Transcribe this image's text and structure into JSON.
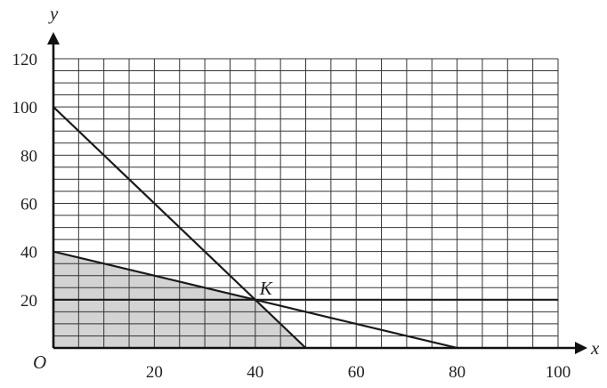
{
  "chart_data": {
    "type": "line",
    "title": "",
    "xlabel": "x",
    "ylabel": "y",
    "origin_label": "O",
    "xlim": [
      0,
      100
    ],
    "ylim": [
      0,
      120
    ],
    "x_ticks": [
      20,
      40,
      60,
      80,
      100
    ],
    "y_ticks": [
      20,
      40,
      60,
      80,
      100,
      120
    ],
    "grid": true,
    "grid_minor_step": 5,
    "lines": [
      {
        "from": [
          0,
          100
        ],
        "to": [
          50,
          0
        ]
      },
      {
        "from": [
          0,
          40
        ],
        "to": [
          80,
          0
        ]
      },
      {
        "from": [
          0,
          20
        ],
        "to": [
          100,
          20
        ]
      }
    ],
    "shaded_region": {
      "vertices": [
        [
          0,
          0
        ],
        [
          0,
          40
        ],
        [
          40,
          20
        ],
        [
          50,
          0
        ]
      ],
      "color": "#d3d3d3"
    },
    "point": {
      "label": "K",
      "x": 40,
      "y": 20
    },
    "colors": {
      "grid": "#333333",
      "lines": "#1a1a1a",
      "shade": "#d3d3d3"
    }
  }
}
